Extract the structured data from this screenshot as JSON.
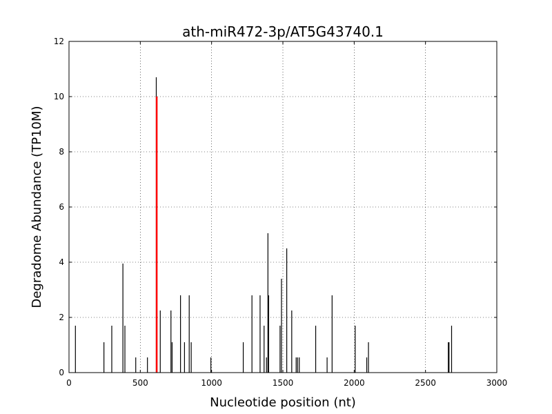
{
  "chart_data": {
    "type": "bar",
    "title": "ath-miR472-3p/AT5G43740.1",
    "xlabel": "Nucleotide position (nt)",
    "ylabel": "Degradome Abundance (TP10M)",
    "xlim": [
      0,
      3000
    ],
    "ylim": [
      0,
      12
    ],
    "xticks": [
      "0",
      "500",
      "1000",
      "1500",
      "2000",
      "2500",
      "3000"
    ],
    "yticks": [
      "0",
      "2",
      "4",
      "6",
      "8",
      "10",
      "12"
    ],
    "grid": true,
    "colors": {
      "series": "#000000",
      "highlight": "#ff0000"
    },
    "series": [
      {
        "x": [
          45,
          245,
          300,
          378,
          392,
          468,
          550,
          612,
          640,
          715,
          723,
          782,
          810,
          843,
          857,
          995,
          1222,
          1283,
          1340,
          1368,
          1385,
          1395,
          1400,
          1480,
          1490,
          1527,
          1562,
          1593,
          1603,
          1615,
          1730,
          1810,
          1845,
          2007,
          2088,
          2100,
          2660,
          2665,
          2683
        ],
        "values": [
          1.7,
          1.1,
          1.7,
          3.95,
          1.7,
          0.55,
          0.55,
          10.7,
          2.25,
          2.25,
          1.1,
          2.8,
          1.1,
          2.8,
          1.1,
          0.55,
          1.1,
          2.8,
          2.8,
          1.7,
          0.55,
          5.05,
          2.8,
          1.7,
          3.4,
          4.5,
          2.25,
          0.55,
          0.55,
          0.55,
          1.7,
          0.55,
          2.8,
          1.7,
          0.55,
          1.1,
          1.1,
          1.1,
          1.7
        ]
      },
      {
        "x": [
          615
        ],
        "values": [
          10.0
        ]
      }
    ]
  }
}
